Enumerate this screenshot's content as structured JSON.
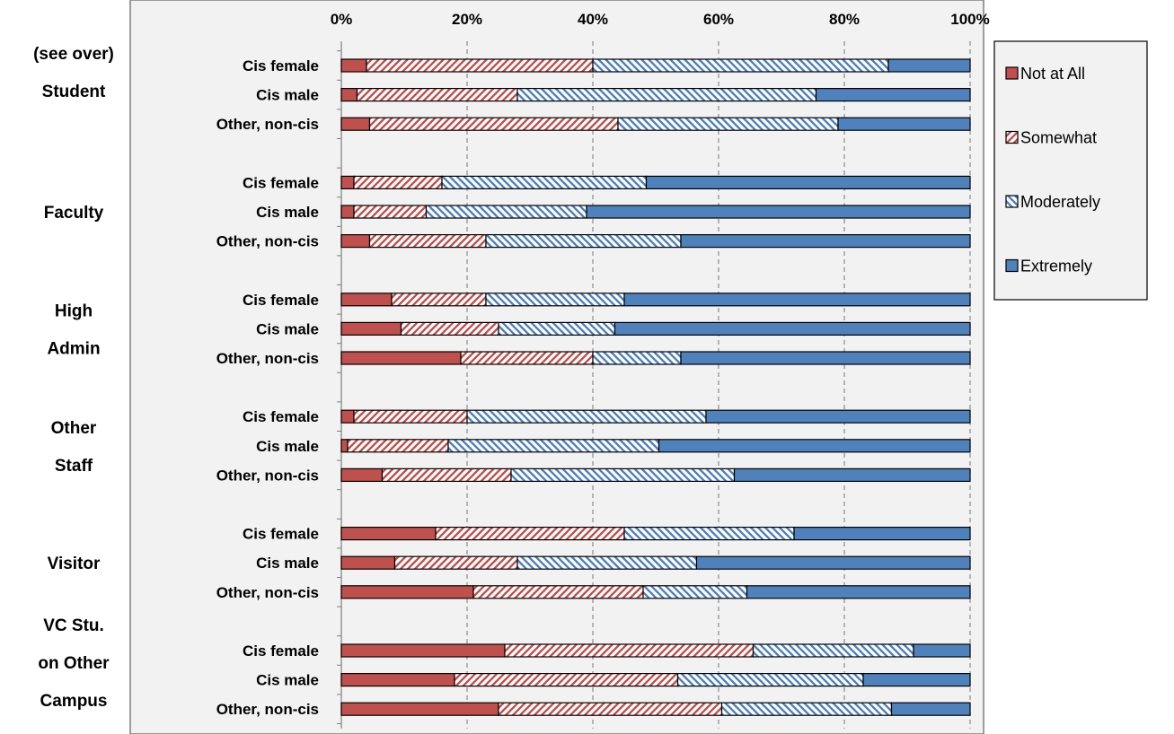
{
  "chart_data": {
    "type": "bar",
    "orientation": "horizontal",
    "stacked": "percent",
    "xlim": [
      0,
      100
    ],
    "x_ticks": [
      "0%",
      "20%",
      "40%",
      "60%",
      "80%",
      "100%"
    ],
    "grid": "vertical dashed",
    "legend_position": "right",
    "series": [
      {
        "name": "Not at All",
        "color": "#c0504d",
        "pattern": "solid"
      },
      {
        "name": "Somewhat",
        "color": "#c0504d",
        "pattern": "diagonal-hatch"
      },
      {
        "name": "Moderately",
        "color": "#4f81bd",
        "pattern": "diagonal-hatch"
      },
      {
        "name": "Extremely",
        "color": "#4f81bd",
        "pattern": "solid"
      }
    ],
    "groups": [
      {
        "label_lines": [
          "(see over)",
          "Student"
        ],
        "rows": [
          {
            "label": "Cis female",
            "values": [
              4,
              36,
              47,
              13
            ]
          },
          {
            "label": "Cis male",
            "values": [
              2.5,
              25.5,
              47.5,
              24.5
            ]
          },
          {
            "label": "Other, non-cis",
            "values": [
              4.5,
              39.5,
              35,
              21
            ]
          }
        ]
      },
      {
        "label_lines": [
          "Faculty"
        ],
        "rows": [
          {
            "label": "Cis female",
            "values": [
              2,
              14,
              32.5,
              51.5
            ]
          },
          {
            "label": "Cis male",
            "values": [
              2,
              11.5,
              25.5,
              61
            ]
          },
          {
            "label": "Other, non-cis",
            "values": [
              4.5,
              18.5,
              31,
              46
            ]
          }
        ]
      },
      {
        "label_lines": [
          "High",
          "Admin"
        ],
        "rows": [
          {
            "label": "Cis female",
            "values": [
              8,
              15,
              22,
              55
            ]
          },
          {
            "label": "Cis male",
            "values": [
              9.5,
              15.5,
              18.5,
              56.5
            ]
          },
          {
            "label": "Other, non-cis",
            "values": [
              19,
              21,
              14,
              46
            ]
          }
        ]
      },
      {
        "label_lines": [
          "Other",
          "Staff"
        ],
        "rows": [
          {
            "label": "Cis female",
            "values": [
              2,
              18,
              38,
              42
            ]
          },
          {
            "label": "Cis male",
            "values": [
              1,
              16,
              33.5,
              49.5
            ]
          },
          {
            "label": "Other, non-cis",
            "values": [
              6.5,
              20.5,
              35.5,
              37.5
            ]
          }
        ]
      },
      {
        "label_lines": [
          "Visitor"
        ],
        "rows": [
          {
            "label": "Cis female",
            "values": [
              15,
              30,
              27,
              28
            ]
          },
          {
            "label": "Cis male",
            "values": [
              8.5,
              19.5,
              28.5,
              43.5
            ]
          },
          {
            "label": "Other, non-cis",
            "values": [
              21,
              27,
              16.5,
              35.5
            ]
          }
        ]
      },
      {
        "label_lines": [
          "VC Stu.",
          "on Other",
          "Campus"
        ],
        "rows": [
          {
            "label": "Cis female",
            "values": [
              26,
              39.5,
              25.5,
              9
            ]
          },
          {
            "label": "Cis male",
            "values": [
              18,
              35.5,
              29.5,
              17
            ]
          },
          {
            "label": "Other, non-cis",
            "values": [
              25,
              35.5,
              27,
              12.5
            ]
          }
        ]
      }
    ]
  }
}
